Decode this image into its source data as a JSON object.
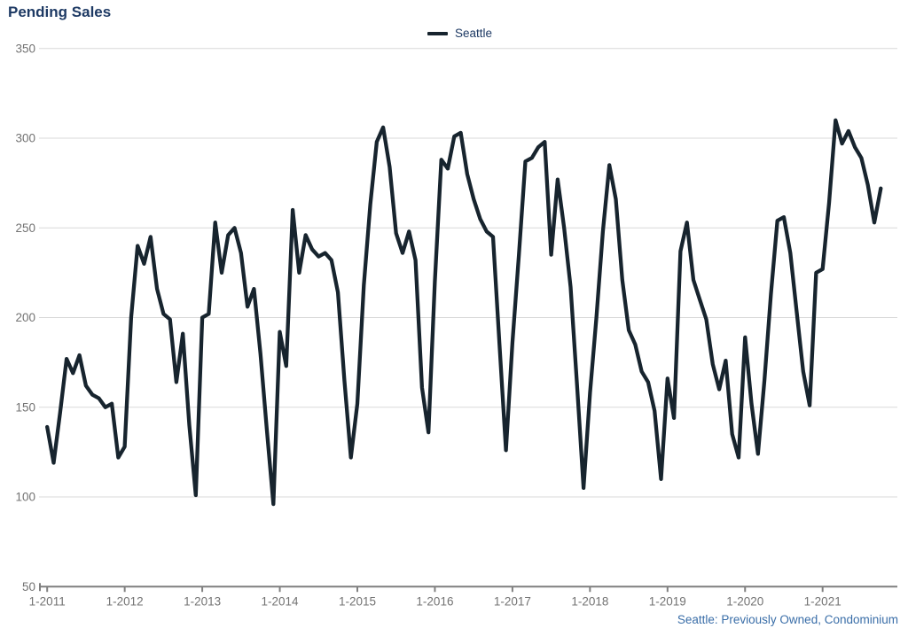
{
  "header": {
    "title": "Pending Sales"
  },
  "legend": {
    "items": [
      {
        "label": "Seattle",
        "swatch_color": "#17242e"
      }
    ]
  },
  "footnote": {
    "text": "Seattle: Previously Owned, Condominium"
  },
  "colors": {
    "background": "#ffffff",
    "title_text": "#1e3a64",
    "legend_text": "#1e3a64",
    "footnote_text": "#3a6ea8",
    "axis_label_text": "#737373",
    "gridline": "#d9d9d9",
    "axis_line": "#7f7f7f",
    "series_line": "#17242e"
  },
  "chart_data": {
    "type": "line",
    "title": "Pending Sales",
    "x_start": "2011-01",
    "x_frequency": "monthly",
    "x_tick_labels": [
      "1-2011",
      "1-2012",
      "1-2013",
      "1-2014",
      "1-2015",
      "1-2016",
      "1-2017",
      "1-2018",
      "1-2019",
      "1-2020",
      "1-2021"
    ],
    "y_ticks": [
      350,
      300,
      250,
      200,
      150,
      100,
      50
    ],
    "ylim": [
      50,
      350
    ],
    "grid": "horizontal",
    "legend_position": "top-center",
    "series": [
      {
        "name": "Seattle",
        "color": "#17242e",
        "values": [
          139,
          119,
          147,
          177,
          169,
          179,
          162,
          157,
          155,
          150,
          152,
          122,
          128,
          200,
          240,
          230,
          245,
          216,
          202,
          199,
          164,
          191,
          140,
          101,
          200,
          202,
          253,
          225,
          246,
          250,
          236,
          206,
          216,
          180,
          137,
          96,
          192,
          173,
          260,
          225,
          246,
          238,
          234,
          236,
          232,
          214,
          165,
          122,
          152,
          218,
          263,
          298,
          306,
          284,
          247,
          236,
          248,
          232,
          161,
          136,
          220,
          288,
          283,
          301,
          303,
          280,
          266,
          255,
          248,
          245,
          185,
          126,
          186,
          235,
          287,
          289,
          295,
          298,
          235,
          277,
          250,
          217,
          162,
          105,
          158,
          200,
          248,
          285,
          266,
          221,
          193,
          185,
          170,
          164,
          148,
          110,
          166,
          144,
          237,
          253,
          221,
          210,
          199,
          174,
          160,
          176,
          135,
          122,
          189,
          152,
          124,
          165,
          213,
          254,
          256,
          236,
          203,
          170,
          151,
          225,
          227,
          264,
          310,
          297,
          304,
          295,
          289,
          274,
          253,
          272
        ]
      }
    ]
  }
}
